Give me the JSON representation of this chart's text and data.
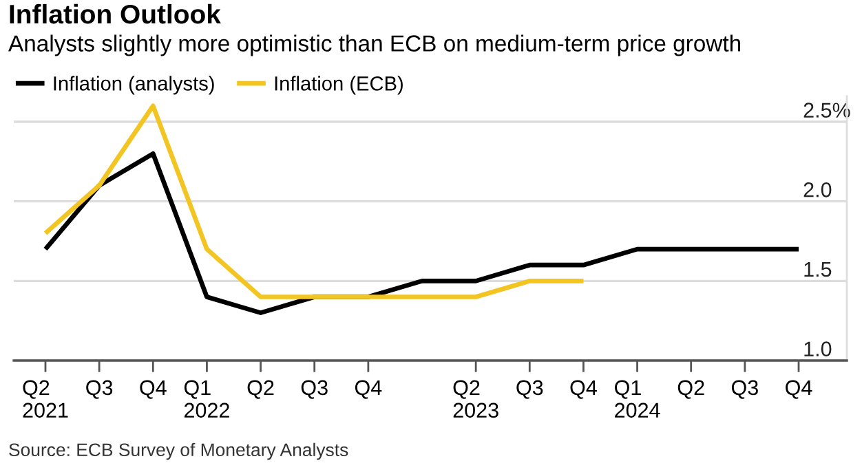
{
  "chart_data": {
    "type": "line",
    "title": "Inflation Outlook",
    "subtitle": "Analysts slightly more optimistic than ECB on medium-term price growth",
    "categories": [
      "Q2\n2021",
      "Q3",
      "Q4",
      "Q1\n2022",
      "Q2",
      "Q3",
      "Q4",
      null,
      "Q2\n2023",
      "Q3",
      "Q4",
      "Q1\n2024",
      "Q2",
      "Q3",
      "Q4"
    ],
    "series": [
      {
        "name": "Inflation (analysts)",
        "color": "#000000",
        "values": [
          1.7,
          2.1,
          2.3,
          1.4,
          1.3,
          1.4,
          1.4,
          1.5,
          1.5,
          1.6,
          1.6,
          1.7,
          1.7,
          1.7,
          1.7
        ]
      },
      {
        "name": "Inflation (ECB)",
        "color": "#f2c522",
        "values": [
          1.8,
          2.1,
          2.6,
          1.7,
          1.4,
          1.4,
          1.4,
          1.4,
          1.4,
          1.5,
          1.5,
          null,
          null,
          null,
          null
        ]
      }
    ],
    "ylim": [
      1.0,
      2.66
    ],
    "yticks": [
      {
        "value": 1.0,
        "label": "1.0"
      },
      {
        "value": 1.5,
        "label": "1.5"
      },
      {
        "value": 2.0,
        "label": "2.0"
      },
      {
        "value": 2.5,
        "label": "2.5%"
      }
    ],
    "grid": "y",
    "legend": "top left",
    "marker": "none",
    "line_style": "solid",
    "annotations": [
      "Source: ECB Survey of Monetary Analysts"
    ]
  }
}
